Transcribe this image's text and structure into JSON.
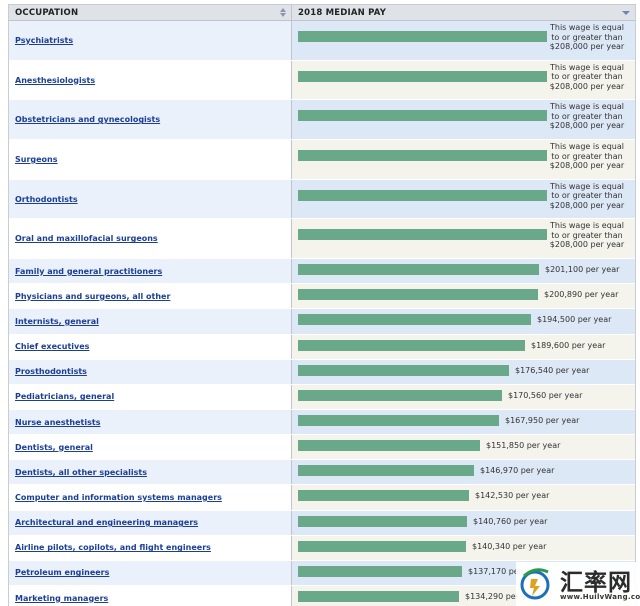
{
  "header": {
    "occupation_label": "OCCUPATION",
    "pay_label": "2018 MEDIAN PAY"
  },
  "capped_note": "This wage is equal to or greater than $208,000 per year",
  "bar_scale_max": 208000,
  "rows": [
    {
      "occupation": "Psychiatrists",
      "pay": 208000,
      "capped": true
    },
    {
      "occupation": "Anesthesiologists",
      "pay": 208000,
      "capped": true
    },
    {
      "occupation": "Obstetricians and gynecologists",
      "pay": 208000,
      "capped": true
    },
    {
      "occupation": "Surgeons",
      "pay": 208000,
      "capped": true
    },
    {
      "occupation": "Orthodontists",
      "pay": 208000,
      "capped": true
    },
    {
      "occupation": "Oral and maxillofacial surgeons",
      "pay": 208000,
      "capped": true
    },
    {
      "occupation": "Family and general practitioners",
      "pay": 201100,
      "pay_label": "$201,100 per year"
    },
    {
      "occupation": "Physicians and surgeons, all other",
      "pay": 200890,
      "pay_label": "$200,890 per year"
    },
    {
      "occupation": "Internists, general",
      "pay": 194500,
      "pay_label": "$194,500 per year"
    },
    {
      "occupation": "Chief executives",
      "pay": 189600,
      "pay_label": "$189,600 per year"
    },
    {
      "occupation": "Prosthodontists",
      "pay": 176540,
      "pay_label": "$176,540 per year"
    },
    {
      "occupation": "Pediatricians, general",
      "pay": 170560,
      "pay_label": "$170,560 per year"
    },
    {
      "occupation": "Nurse anesthetists",
      "pay": 167950,
      "pay_label": "$167,950 per year"
    },
    {
      "occupation": "Dentists, general",
      "pay": 151850,
      "pay_label": "$151,850 per year"
    },
    {
      "occupation": "Dentists, all other specialists",
      "pay": 146970,
      "pay_label": "$146,970 per year"
    },
    {
      "occupation": "Computer and information systems managers",
      "pay": 142530,
      "pay_label": "$142,530 per year"
    },
    {
      "occupation": "Architectural and engineering managers",
      "pay": 140760,
      "pay_label": "$140,760 per year"
    },
    {
      "occupation": "Airline pilots, copilots, and flight engineers",
      "pay": 140340,
      "pay_label": "$140,340 per year"
    },
    {
      "occupation": "Petroleum engineers",
      "pay": 137170,
      "pay_label": "$137,170 per year"
    },
    {
      "occupation": "Marketing managers",
      "pay": 134290,
      "pay_label": "$134,290 per year"
    }
  ],
  "watermark": {
    "title": "汇率网",
    "url": "www.HuilvWang.com"
  },
  "colors": {
    "bar": "#6aa88a",
    "link": "#1c3f95",
    "header_bg": "#dfe2e7"
  }
}
